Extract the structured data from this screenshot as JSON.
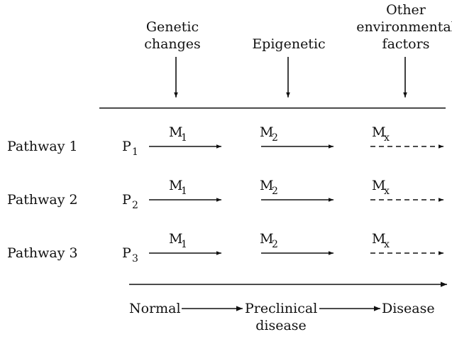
{
  "factors": [
    {
      "lines": [
        "Genetic",
        "changes"
      ]
    },
    {
      "lines": [
        "Epigenetic"
      ]
    },
    {
      "lines": [
        "Other",
        "environmental",
        "factors"
      ]
    }
  ],
  "pathways": [
    {
      "label": "Pathway 1",
      "state": "P",
      "state_sub": "1",
      "steps": [
        {
          "symbol": "M",
          "sub": "1"
        },
        {
          "symbol": "M",
          "sub": "2"
        },
        {
          "symbol": "M",
          "sub": "x"
        }
      ]
    },
    {
      "label": "Pathway 2",
      "state": "P",
      "state_sub": "2",
      "steps": [
        {
          "symbol": "M",
          "sub": "1"
        },
        {
          "symbol": "M",
          "sub": "2"
        },
        {
          "symbol": "M",
          "sub": "x"
        }
      ]
    },
    {
      "label": "Pathway 3",
      "state": "P",
      "state_sub": "3",
      "steps": [
        {
          "symbol": "M",
          "sub": "1"
        },
        {
          "symbol": "M",
          "sub": "2"
        },
        {
          "symbol": "M",
          "sub": "x"
        }
      ]
    }
  ],
  "stages": [
    {
      "lines": [
        "Normal"
      ]
    },
    {
      "lines": [
        "Preclinical",
        "disease"
      ]
    },
    {
      "lines": [
        "Disease"
      ]
    }
  ]
}
